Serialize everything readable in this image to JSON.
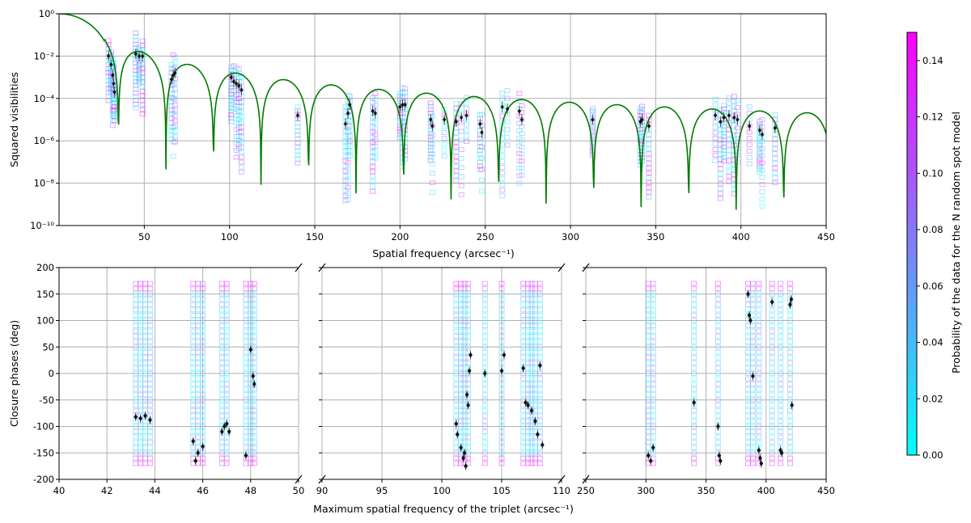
{
  "chart_data": [
    {
      "id": "vis",
      "type": "scatter",
      "xlabel": "Spatial frequency (arcsec⁻¹)",
      "ylabel": "Squared visibilities",
      "x_range": [
        0,
        450
      ],
      "y_range_log10": [
        -10,
        0
      ],
      "x_ticks": [
        50,
        100,
        150,
        200,
        250,
        300,
        350,
        400,
        450
      ],
      "y_ticks": [
        {
          "exp": 0,
          "label": "10⁰"
        },
        {
          "exp": -2,
          "label": "10⁻²"
        },
        {
          "exp": -4,
          "label": "10⁻⁴"
        },
        {
          "exp": -6,
          "label": "10⁻⁶"
        },
        {
          "exp": -8,
          "label": "10⁻⁸"
        },
        {
          "exp": -10,
          "label": "10⁻¹⁰"
        }
      ],
      "grid": true,
      "model_curve": {
        "name": "uniform disc model",
        "color": "#007a00",
        "first_null": 34,
        "null_spacing": 26.7
      },
      "observations": [
        {
          "x": 29.0,
          "y": -2.0
        },
        {
          "x": 30.5,
          "y": -2.4
        },
        {
          "x": 31.5,
          "y": -2.9
        },
        {
          "x": 32.0,
          "y": -3.3
        },
        {
          "x": 32.5,
          "y": -3.7
        },
        {
          "x": 45.0,
          "y": -1.9
        },
        {
          "x": 47.0,
          "y": -2.0
        },
        {
          "x": 49.0,
          "y": -2.0
        },
        {
          "x": 66.0,
          "y": -3.1
        },
        {
          "x": 67.0,
          "y": -2.9
        },
        {
          "x": 68.0,
          "y": -2.8
        },
        {
          "x": 101.0,
          "y": -3.0
        },
        {
          "x": 102.5,
          "y": -3.2
        },
        {
          "x": 104.0,
          "y": -3.3
        },
        {
          "x": 105.5,
          "y": -3.4
        },
        {
          "x": 107.0,
          "y": -3.6
        },
        {
          "x": 140.0,
          "y": -4.8
        },
        {
          "x": 168.0,
          "y": -5.2
        },
        {
          "x": 169.5,
          "y": -4.7
        },
        {
          "x": 170.5,
          "y": -4.3
        },
        {
          "x": 184.0,
          "y": -4.6
        },
        {
          "x": 185.5,
          "y": -4.7
        },
        {
          "x": 200.0,
          "y": -4.4
        },
        {
          "x": 201.5,
          "y": -4.3
        },
        {
          "x": 203.0,
          "y": -4.3
        },
        {
          "x": 218.0,
          "y": -5.0
        },
        {
          "x": 219.0,
          "y": -5.3
        },
        {
          "x": 226.0,
          "y": -5.0
        },
        {
          "x": 233.0,
          "y": -5.1
        },
        {
          "x": 236.0,
          "y": -4.9
        },
        {
          "x": 239.0,
          "y": -4.8
        },
        {
          "x": 247.0,
          "y": -5.2
        },
        {
          "x": 248.0,
          "y": -5.6
        },
        {
          "x": 260.0,
          "y": -4.4
        },
        {
          "x": 263.0,
          "y": -4.5
        },
        {
          "x": 270.0,
          "y": -4.6
        },
        {
          "x": 271.5,
          "y": -5.0
        },
        {
          "x": 313.0,
          "y": -5.0
        },
        {
          "x": 341.0,
          "y": -5.1
        },
        {
          "x": 342.0,
          "y": -5.0
        },
        {
          "x": 346.0,
          "y": -5.3
        },
        {
          "x": 385.0,
          "y": -4.8
        },
        {
          "x": 388.0,
          "y": -5.1
        },
        {
          "x": 390.0,
          "y": -4.9
        },
        {
          "x": 393.0,
          "y": -4.8
        },
        {
          "x": 396.0,
          "y": -4.9
        },
        {
          "x": 398.0,
          "y": -5.0
        },
        {
          "x": 405.0,
          "y": -5.3
        },
        {
          "x": 411.0,
          "y": -5.5
        },
        {
          "x": 412.5,
          "y": -5.7
        },
        {
          "x": 420.0,
          "y": -5.4
        }
      ]
    },
    {
      "id": "cp",
      "type": "scatter",
      "ylabel": "Closure phases (deg)",
      "xlabel": "Maximum spatial frequency of the triplet (arcsec⁻¹)",
      "y_range": [
        -200,
        200
      ],
      "y_ticks": [
        200,
        150,
        100,
        50,
        0,
        -50,
        -100,
        -150,
        -200
      ],
      "grid": true,
      "panels": [
        {
          "x_range": [
            40,
            50
          ],
          "x_ticks": [
            40,
            42,
            44,
            46,
            48,
            50
          ],
          "observations": [
            {
              "x": 43.2,
              "y": -82
            },
            {
              "x": 43.4,
              "y": -85
            },
            {
              "x": 43.6,
              "y": -80
            },
            {
              "x": 43.8,
              "y": -88
            },
            {
              "x": 45.6,
              "y": -128
            },
            {
              "x": 45.7,
              "y": -165
            },
            {
              "x": 45.8,
              "y": -150
            },
            {
              "x": 46.0,
              "y": -138
            },
            {
              "x": 46.8,
              "y": -110
            },
            {
              "x": 46.9,
              "y": -100
            },
            {
              "x": 47.0,
              "y": -95
            },
            {
              "x": 47.1,
              "y": -110
            },
            {
              "x": 47.8,
              "y": -155
            },
            {
              "x": 48.0,
              "y": 45
            },
            {
              "x": 48.1,
              "y": -5
            },
            {
              "x": 48.15,
              "y": -20
            }
          ]
        },
        {
          "x_range": [
            90,
            110
          ],
          "x_ticks": [
            90,
            95,
            100,
            105,
            110
          ],
          "observations": [
            {
              "x": 101.2,
              "y": -95
            },
            {
              "x": 101.3,
              "y": -115
            },
            {
              "x": 101.6,
              "y": -140
            },
            {
              "x": 101.8,
              "y": -160
            },
            {
              "x": 101.9,
              "y": -150
            },
            {
              "x": 102.0,
              "y": -175
            },
            {
              "x": 102.1,
              "y": -40
            },
            {
              "x": 102.2,
              "y": -60
            },
            {
              "x": 102.3,
              "y": 5
            },
            {
              "x": 102.4,
              "y": 35
            },
            {
              "x": 103.6,
              "y": 0
            },
            {
              "x": 105.0,
              "y": 5
            },
            {
              "x": 105.2,
              "y": 35
            },
            {
              "x": 106.8,
              "y": 10
            },
            {
              "x": 107.0,
              "y": -55
            },
            {
              "x": 107.2,
              "y": -60
            },
            {
              "x": 107.5,
              "y": -70
            },
            {
              "x": 107.8,
              "y": -90
            },
            {
              "x": 108.0,
              "y": -115
            },
            {
              "x": 108.2,
              "y": 15
            },
            {
              "x": 108.4,
              "y": -135
            }
          ]
        },
        {
          "x_range": [
            250,
            450
          ],
          "x_ticks": [
            250,
            300,
            350,
            400,
            450
          ],
          "observations": [
            {
              "x": 302,
              "y": -155
            },
            {
              "x": 304,
              "y": -165
            },
            {
              "x": 306,
              "y": -140
            },
            {
              "x": 340,
              "y": -55
            },
            {
              "x": 360,
              "y": -100
            },
            {
              "x": 361,
              "y": -155
            },
            {
              "x": 362,
              "y": -165
            },
            {
              "x": 385,
              "y": 150
            },
            {
              "x": 386,
              "y": 110
            },
            {
              "x": 387,
              "y": 100
            },
            {
              "x": 389,
              "y": -5
            },
            {
              "x": 394,
              "y": -145
            },
            {
              "x": 395,
              "y": -160
            },
            {
              "x": 396,
              "y": -170
            },
            {
              "x": 405,
              "y": 135
            },
            {
              "x": 412,
              "y": -145
            },
            {
              "x": 413,
              "y": -150
            },
            {
              "x": 420,
              "y": 130
            },
            {
              "x": 421,
              "y": 140
            },
            {
              "x": 421.5,
              "y": -60
            }
          ]
        }
      ]
    },
    {
      "id": "colorbar",
      "type": "heatmap",
      "label": "Probability of the data for the N random spot model",
      "range": [
        0,
        0.15
      ],
      "ticks": [
        "0.00",
        "0.02",
        "0.04",
        "0.06",
        "0.08",
        "0.10",
        "0.12",
        "0.14"
      ],
      "tick_values": [
        0,
        0.02,
        0.04,
        0.06,
        0.08,
        0.1,
        0.12,
        0.14
      ],
      "colors": {
        "low": "#00ffff",
        "high": "#ff00ff"
      }
    }
  ]
}
